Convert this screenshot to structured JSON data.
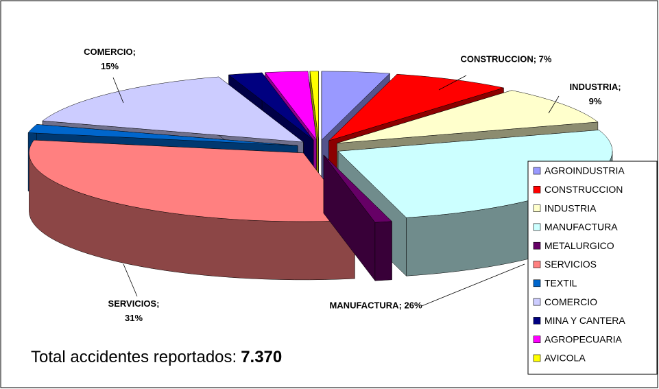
{
  "chart_data": {
    "type": "pie3d",
    "categories": [
      "AGROINDUSTRIA",
      "CONSTRUCCION",
      "INDUSTRIA",
      "MANUFACTURA",
      "METALURGICO",
      "SERVICIOS",
      "TEXTIL",
      "COMERCIO",
      "MINA Y CANTERA",
      "AGROPECUARIA",
      "AVICOLA"
    ],
    "values": [
      4,
      7,
      9,
      26,
      1,
      31,
      2,
      15,
      2,
      2.5,
      0.5
    ],
    "value_labels": [
      null,
      "CONSTRUCCION; 7%",
      "INDUSTRIA; 9%",
      "MANUFACTURA; 26%",
      null,
      "SERVICIOS; 31%",
      null,
      "COMERCIO; 15%",
      null,
      null,
      null
    ],
    "colors": [
      "#9999ff",
      "#ff0000",
      "#ffffcc",
      "#ccffff",
      "#660066",
      "#ff8080",
      "#0066cc",
      "#ccccff",
      "#000080",
      "#ff00ff",
      "#ffff00"
    ],
    "legend": "right",
    "total_text": "Total accidentes reportados:",
    "total_value": 7370,
    "total_value_label": "7.370"
  }
}
